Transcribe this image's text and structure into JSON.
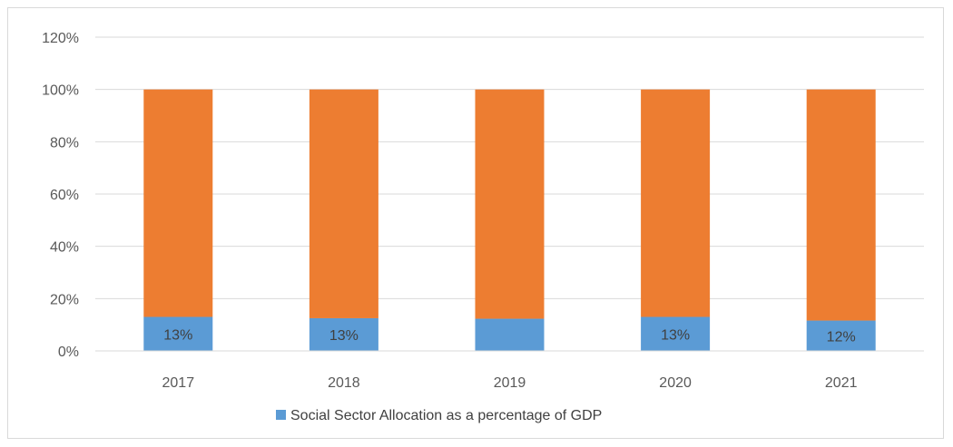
{
  "chart_data": {
    "type": "bar",
    "stacked": true,
    "categories": [
      "2017",
      "2018",
      "2019",
      "2020",
      "2021"
    ],
    "series": [
      {
        "name": "Social Sector Allocation as a percentage of GDP",
        "color": "#5b9bd5",
        "values": [
          13,
          12.5,
          12.3,
          13,
          11.6
        ],
        "data_labels": [
          "13%",
          "13%",
          "",
          "13%",
          "12%"
        ]
      },
      {
        "color": "#ed7d31",
        "values": [
          87,
          87.5,
          87.7,
          87,
          88.4
        ]
      }
    ],
    "y_ticks": [
      "0%",
      "20%",
      "40%",
      "60%",
      "80%",
      "100%",
      "120%"
    ],
    "ylim": [
      0,
      120
    ],
    "grid": true,
    "legend_position": "bottom"
  }
}
